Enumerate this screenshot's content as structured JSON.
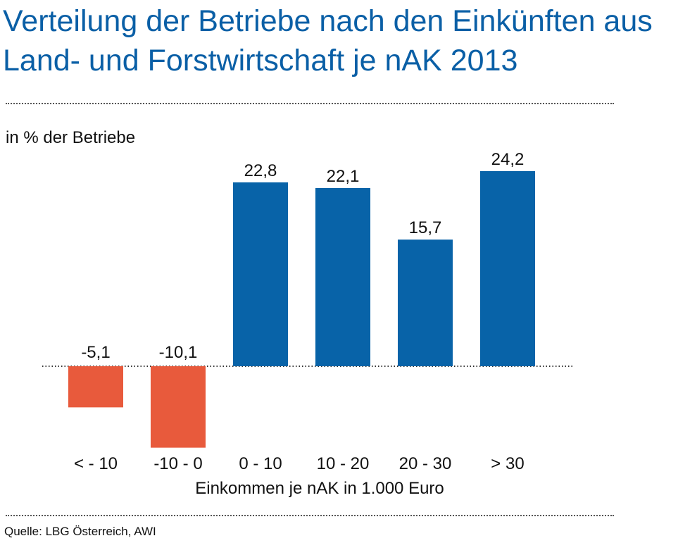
{
  "title": "Verteilung der Betriebe nach den Einkünften aus Land- und Forstwirtschaft je nAK 2013",
  "colors": {
    "title": "#0a5fa6",
    "positive": "#0863a8",
    "negative": "#e85a3c"
  },
  "chart_data": {
    "type": "bar",
    "ylabel": "in % der Betriebe",
    "xlabel": "Einkommen je nAK in 1.000 Euro",
    "categories": [
      "< - 10",
      "-10 - 0",
      "0 - 10",
      "10 - 20",
      "20 - 30",
      "> 30"
    ],
    "values": [
      -5.1,
      -10.1,
      22.8,
      22.1,
      15.7,
      24.2
    ],
    "value_labels": [
      "-5,1",
      "-10,1",
      "22,8",
      "22,1",
      "15,7",
      "24,2"
    ],
    "grid": false,
    "legend": "none"
  },
  "source": "Quelle: LBG Österreich, AWI"
}
